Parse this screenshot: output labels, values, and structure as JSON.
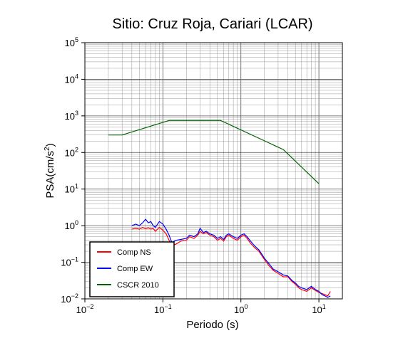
{
  "chart_data": {
    "type": "line",
    "title": "Sitio: Cruz Roja, Cariari (LCAR)",
    "xlabel": "Periodo (s)",
    "ylabel_main": "PSA(cm/s",
    "ylabel_sup": "2",
    "ylabel_close": ")",
    "xscale": "log",
    "yscale": "log",
    "xlim": [
      0.01,
      20
    ],
    "ylim": [
      0.01,
      100000
    ],
    "grid": true,
    "legend_position": "bottom-left",
    "x_ticks": [
      {
        "value": 0.01,
        "base": "10",
        "exp": "−2"
      },
      {
        "value": 0.1,
        "base": "10",
        "exp": "−1"
      },
      {
        "value": 1,
        "base": "10",
        "exp": "0"
      },
      {
        "value": 10,
        "base": "10",
        "exp": "1"
      }
    ],
    "y_ticks": [
      {
        "value": 0.01,
        "base": "10",
        "exp": "−2"
      },
      {
        "value": 0.1,
        "base": "10",
        "exp": "−1"
      },
      {
        "value": 1,
        "base": "10",
        "exp": "0"
      },
      {
        "value": 10,
        "base": "10",
        "exp": "1"
      },
      {
        "value": 100,
        "base": "10",
        "exp": "2"
      },
      {
        "value": 1000,
        "base": "10",
        "exp": "3"
      },
      {
        "value": 10000,
        "base": "10",
        "exp": "4"
      },
      {
        "value": 100000,
        "base": "10",
        "exp": "5"
      }
    ],
    "series": [
      {
        "name": "Comp NS",
        "color": "#ff0000",
        "x": [
          0.04,
          0.045,
          0.05,
          0.055,
          0.06,
          0.065,
          0.07,
          0.075,
          0.08,
          0.09,
          0.1,
          0.11,
          0.12,
          0.13,
          0.15,
          0.17,
          0.2,
          0.22,
          0.25,
          0.28,
          0.3,
          0.33,
          0.36,
          0.4,
          0.45,
          0.5,
          0.55,
          0.6,
          0.65,
          0.7,
          0.8,
          0.9,
          1.0,
          1.1,
          1.2,
          1.3,
          1.5,
          1.7,
          2.0,
          2.3,
          2.6,
          3.0,
          3.5,
          4.0,
          4.5,
          5.0,
          5.5,
          6.0,
          7.0,
          8.0,
          9.0,
          10.0,
          11.0,
          12.0,
          13.0,
          14.0
        ],
        "y": [
          0.8,
          0.85,
          0.8,
          0.9,
          0.82,
          0.88,
          0.8,
          0.85,
          0.7,
          0.9,
          0.75,
          0.6,
          0.4,
          0.28,
          0.32,
          0.38,
          0.4,
          0.5,
          0.45,
          0.55,
          0.7,
          0.6,
          0.65,
          0.55,
          0.5,
          0.4,
          0.45,
          0.38,
          0.5,
          0.55,
          0.45,
          0.4,
          0.5,
          0.55,
          0.45,
          0.35,
          0.25,
          0.2,
          0.12,
          0.08,
          0.06,
          0.05,
          0.04,
          0.04,
          0.03,
          0.025,
          0.02,
          0.018,
          0.016,
          0.02,
          0.017,
          0.015,
          0.014,
          0.013,
          0.012,
          0.016
        ]
      },
      {
        "name": "Comp EW",
        "color": "#0000ff",
        "x": [
          0.04,
          0.045,
          0.05,
          0.055,
          0.06,
          0.065,
          0.07,
          0.075,
          0.08,
          0.09,
          0.1,
          0.11,
          0.12,
          0.13,
          0.15,
          0.17,
          0.2,
          0.22,
          0.25,
          0.28,
          0.3,
          0.33,
          0.36,
          0.4,
          0.45,
          0.5,
          0.55,
          0.6,
          0.65,
          0.7,
          0.8,
          0.9,
          1.0,
          1.1,
          1.2,
          1.3,
          1.5,
          1.7,
          2.0,
          2.3,
          2.6,
          3.0,
          3.5,
          4.0,
          4.5,
          5.0,
          5.5,
          6.0,
          7.0,
          8.0,
          9.0,
          10.0,
          11.0,
          12.0,
          13.0,
          14.0
        ],
        "y": [
          1.0,
          1.1,
          1.0,
          1.2,
          1.5,
          1.2,
          1.3,
          1.0,
          0.9,
          1.3,
          1.1,
          0.8,
          0.55,
          0.35,
          0.4,
          0.42,
          0.45,
          0.55,
          0.5,
          0.6,
          0.85,
          0.65,
          0.7,
          0.6,
          0.55,
          0.45,
          0.5,
          0.42,
          0.55,
          0.6,
          0.5,
          0.45,
          0.55,
          0.6,
          0.5,
          0.4,
          0.28,
          0.22,
          0.13,
          0.09,
          0.065,
          0.055,
          0.045,
          0.042,
          0.032,
          0.027,
          0.022,
          0.02,
          0.018,
          0.022,
          0.018,
          0.016,
          0.013,
          0.012,
          0.011,
          0.012
        ]
      },
      {
        "name": "CSCR 2010",
        "color": "#006400",
        "x": [
          0.02,
          0.03,
          0.12,
          0.55,
          3.5,
          10.0
        ],
        "y": [
          300,
          300,
          750,
          750,
          120,
          14
        ]
      }
    ]
  }
}
